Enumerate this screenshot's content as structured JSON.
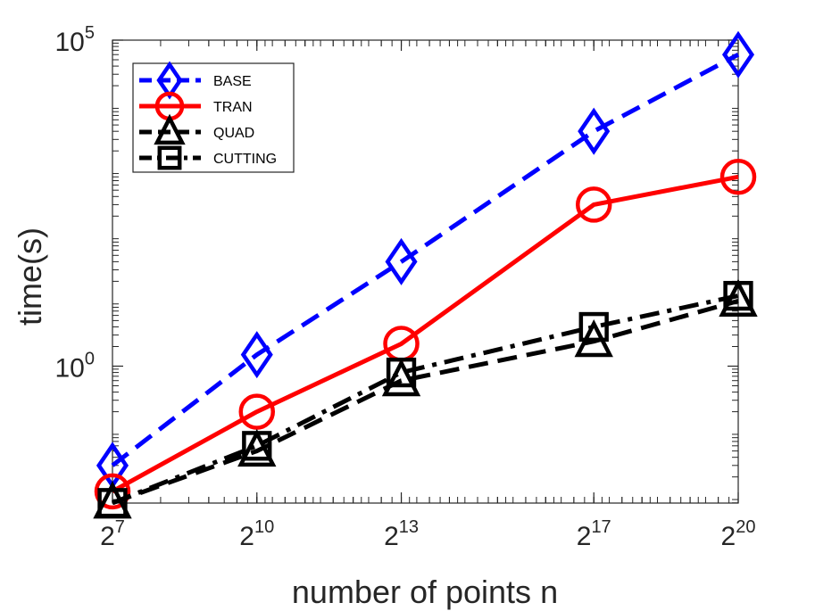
{
  "chart_data": {
    "type": "line",
    "title": "",
    "xlabel": "number of points n",
    "ylabel": "time(s)",
    "xscale": "log2",
    "yscale": "log10",
    "xlim": [
      7,
      20
    ],
    "ylim_exp": [
      -2.1,
      5
    ],
    "x": [
      7,
      10,
      13,
      17,
      20
    ],
    "x_tick_labels": [
      {
        "base": "2",
        "exp": "7"
      },
      {
        "base": "2",
        "exp": "10"
      },
      {
        "base": "2",
        "exp": "13"
      },
      {
        "base": "2",
        "exp": "17"
      },
      {
        "base": "2",
        "exp": "20"
      }
    ],
    "y_tick_labels": [
      {
        "base": "10",
        "exp": "0"
      },
      {
        "base": "10",
        "exp": "5"
      }
    ],
    "grid": false,
    "legend_position": "top-left",
    "series": [
      {
        "name": "BASE",
        "color": "#0000ff",
        "dash": "dashed",
        "marker": "diamond",
        "values": [
          0.03,
          1.5,
          40,
          4000,
          60000
        ]
      },
      {
        "name": "TRAN",
        "color": "#ff0000",
        "dash": "solid",
        "marker": "circle",
        "values": [
          0.012,
          0.2,
          2.2,
          300,
          800
        ]
      },
      {
        "name": "QUAD",
        "color": "#000000",
        "dash": "dashed",
        "marker": "triangle",
        "values": [
          0.008,
          0.05,
          0.6,
          2.4,
          10
        ]
      },
      {
        "name": "CUTTING",
        "color": "#000000",
        "dash": "dashdot",
        "marker": "square",
        "values": [
          0.008,
          0.06,
          0.8,
          4,
          12
        ]
      }
    ]
  }
}
